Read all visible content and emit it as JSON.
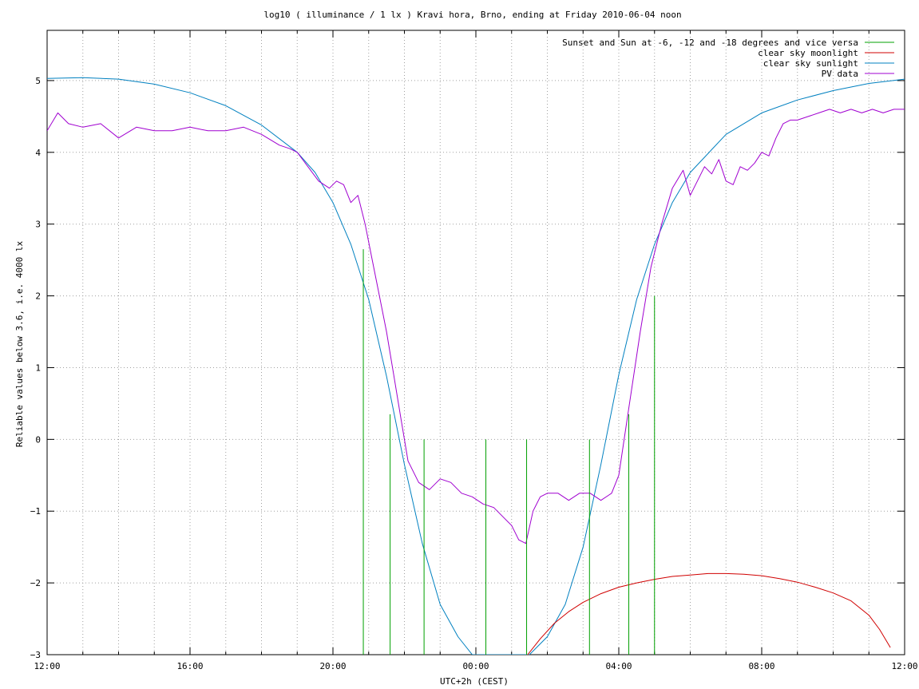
{
  "chart_data": {
    "type": "line",
    "title": "log10 ( illuminance / 1 lx ) Kravi hora, Brno, ending at Friday 2010-06-04 noon",
    "xlabel": "UTC+2h (CEST)",
    "ylabel": "Reliable values below 3.6, i.e. 4000 lx",
    "x_unit": "hours after 12:00 of the preceding day",
    "xlim": [
      0,
      24
    ],
    "ylim": [
      -3,
      5.7
    ],
    "x_ticks": [
      {
        "x": 0,
        "label": "12:00"
      },
      {
        "x": 4,
        "label": "16:00"
      },
      {
        "x": 8,
        "label": "20:00"
      },
      {
        "x": 12,
        "label": "00:00"
      },
      {
        "x": 16,
        "label": "04:00"
      },
      {
        "x": 20,
        "label": "08:00"
      },
      {
        "x": 24,
        "label": "12:00"
      }
    ],
    "x_minor_step": 1,
    "y_ticks": [
      {
        "y": 5,
        "label": "5"
      },
      {
        "y": 4,
        "label": "4"
      },
      {
        "y": 3,
        "label": "3"
      },
      {
        "y": 2,
        "label": "2"
      },
      {
        "y": 1,
        "label": "1"
      },
      {
        "y": 0,
        "label": "0"
      },
      {
        "y": -1,
        "label": "−1"
      },
      {
        "y": -2,
        "label": "−2"
      },
      {
        "y": -3,
        "label": "−3"
      }
    ],
    "grid": true,
    "legend_position": "top-right",
    "series": [
      {
        "name": "Sunset and Sun at -6, -12 and -18 degrees and vice versa",
        "color": "#00a000",
        "kind": "vertical-markers",
        "markers": [
          {
            "x": 8.85,
            "y_top": 2.65
          },
          {
            "x": 9.6,
            "y_top": 0.35
          },
          {
            "x": 10.55,
            "y_top": 0
          },
          {
            "x": 12.28,
            "y_top": 0
          },
          {
            "x": 13.42,
            "y_top": 0
          },
          {
            "x": 15.18,
            "y_top": 0
          },
          {
            "x": 16.28,
            "y_top": 0.35
          },
          {
            "x": 17.0,
            "y_top": 2.0
          }
        ]
      },
      {
        "name": "clear sky moonlight",
        "color": "#d00000",
        "x": [
          13.45,
          13.8,
          14.2,
          14.6,
          15.0,
          15.5,
          16.0,
          16.5,
          17.0,
          17.5,
          18.0,
          18.5,
          19.0,
          19.5,
          20.0,
          20.5,
          21.0,
          21.5,
          22.0,
          22.5,
          23.0,
          23.3,
          23.6
        ],
        "y": [
          -3.0,
          -2.78,
          -2.56,
          -2.4,
          -2.27,
          -2.15,
          -2.06,
          -2.0,
          -1.95,
          -1.91,
          -1.89,
          -1.87,
          -1.87,
          -1.88,
          -1.9,
          -1.94,
          -1.99,
          -2.06,
          -2.14,
          -2.25,
          -2.45,
          -2.65,
          -2.9
        ]
      },
      {
        "name": "clear sky sunlight",
        "color": "#0080c0",
        "x": [
          0,
          1,
          2,
          3,
          4,
          5,
          6,
          7,
          7.5,
          8.0,
          8.5,
          9.0,
          9.5,
          10.0,
          10.5,
          11.0,
          11.5,
          11.9,
          13.5,
          14.0,
          14.5,
          15.0,
          15.5,
          16.0,
          16.5,
          17.0,
          17.5,
          18.0,
          19.0,
          20.0,
          21.0,
          22.0,
          23.0,
          24.0
        ],
        "y": [
          5.03,
          5.04,
          5.02,
          4.95,
          4.83,
          4.65,
          4.38,
          4.0,
          3.72,
          3.3,
          2.72,
          1.95,
          0.88,
          -0.35,
          -1.45,
          -2.3,
          -2.75,
          -3.0,
          -3.0,
          -2.75,
          -2.3,
          -1.5,
          -0.35,
          0.9,
          1.95,
          2.72,
          3.3,
          3.72,
          4.25,
          4.55,
          4.73,
          4.86,
          4.96,
          5.02
        ]
      },
      {
        "name": "PV data",
        "color": "#a000d0",
        "x": [
          0,
          0.3,
          0.6,
          1.0,
          1.5,
          2.0,
          2.5,
          3.0,
          3.5,
          4.0,
          4.5,
          5.0,
          5.5,
          6.0,
          6.5,
          6.8,
          7.0,
          7.3,
          7.6,
          7.9,
          8.1,
          8.3,
          8.5,
          8.7,
          8.9,
          9.1,
          9.3,
          9.5,
          9.7,
          9.9,
          10.1,
          10.4,
          10.7,
          11.0,
          11.3,
          11.6,
          11.9,
          12.2,
          12.5,
          12.8,
          13.0,
          13.2,
          13.4,
          13.6,
          13.8,
          14.0,
          14.3,
          14.6,
          14.9,
          15.2,
          15.5,
          15.8,
          16.0,
          16.3,
          16.6,
          16.9,
          17.2,
          17.5,
          17.8,
          18.0,
          18.2,
          18.4,
          18.6,
          18.8,
          19.0,
          19.2,
          19.4,
          19.6,
          19.8,
          20.0,
          20.2,
          20.4,
          20.6,
          20.8,
          21.0,
          21.3,
          21.6,
          21.9,
          22.2,
          22.5,
          22.8,
          23.1,
          23.4,
          23.7,
          24.0
        ],
        "y": [
          4.3,
          4.55,
          4.4,
          4.35,
          4.4,
          4.2,
          4.35,
          4.3,
          4.3,
          4.35,
          4.3,
          4.3,
          4.35,
          4.25,
          4.1,
          4.05,
          4.0,
          3.8,
          3.6,
          3.5,
          3.6,
          3.55,
          3.3,
          3.4,
          3.0,
          2.5,
          2.0,
          1.5,
          0.9,
          0.3,
          -0.3,
          -0.6,
          -0.7,
          -0.55,
          -0.6,
          -0.75,
          -0.8,
          -0.9,
          -0.95,
          -1.1,
          -1.2,
          -1.4,
          -1.45,
          -1.0,
          -0.8,
          -0.75,
          -0.75,
          -0.85,
          -0.75,
          -0.75,
          -0.85,
          -0.75,
          -0.5,
          0.5,
          1.5,
          2.4,
          3.0,
          3.5,
          3.75,
          3.4,
          3.6,
          3.8,
          3.7,
          3.9,
          3.6,
          3.55,
          3.8,
          3.75,
          3.85,
          4.0,
          3.95,
          4.2,
          4.4,
          4.45,
          4.45,
          4.5,
          4.55,
          4.6,
          4.55,
          4.6,
          4.55,
          4.6,
          4.55,
          4.6,
          4.6
        ]
      }
    ]
  }
}
